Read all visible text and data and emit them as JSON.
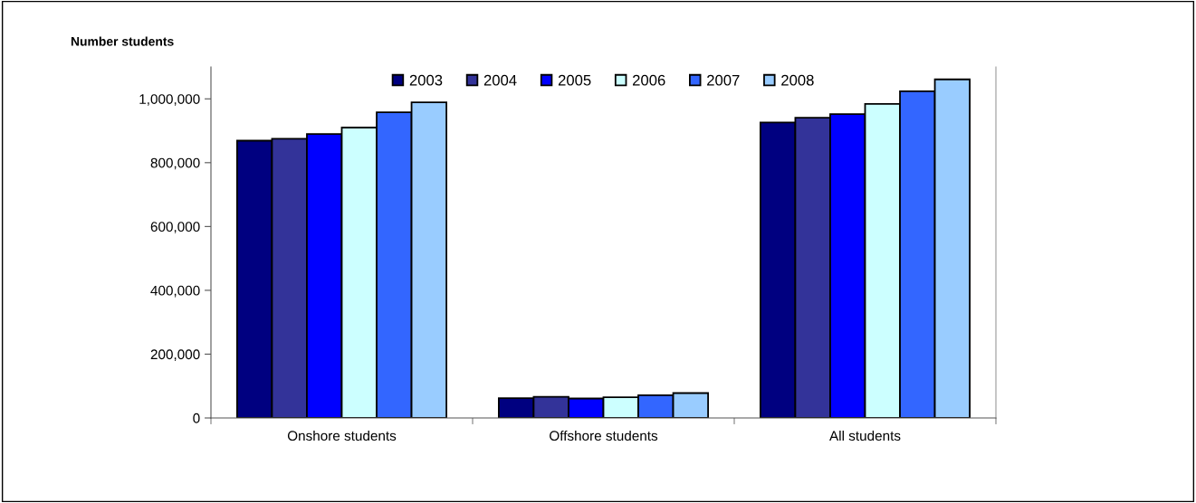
{
  "chart_data": {
    "type": "bar",
    "title": "Number students",
    "categories": [
      "Onshore students",
      "Offshore students",
      "All students"
    ],
    "series": [
      {
        "name": "2003",
        "color": "#000080",
        "values": [
          869000,
          62000,
          926000
        ]
      },
      {
        "name": "2004",
        "color": "#333399",
        "values": [
          875000,
          66000,
          941000
        ]
      },
      {
        "name": "2005",
        "color": "#0000ff",
        "values": [
          890000,
          61000,
          952000
        ]
      },
      {
        "name": "2006",
        "color": "#ccffff",
        "values": [
          910000,
          65000,
          984000
        ]
      },
      {
        "name": "2007",
        "color": "#3366ff",
        "values": [
          958000,
          71000,
          1024000
        ]
      },
      {
        "name": "2008",
        "color": "#99ccff",
        "values": [
          989000,
          78000,
          1061000
        ]
      }
    ],
    "ylim": [
      0,
      1100000
    ],
    "yticks": [
      {
        "value": 0,
        "label": "0"
      },
      {
        "value": 200000,
        "label": "200,000"
      },
      {
        "value": 400000,
        "label": "400,000"
      },
      {
        "value": 600000,
        "label": "600,000"
      },
      {
        "value": 800000,
        "label": "800,000"
      },
      {
        "value": 1000000,
        "label": "1,000,000"
      }
    ],
    "grid": false,
    "legend": "top"
  }
}
